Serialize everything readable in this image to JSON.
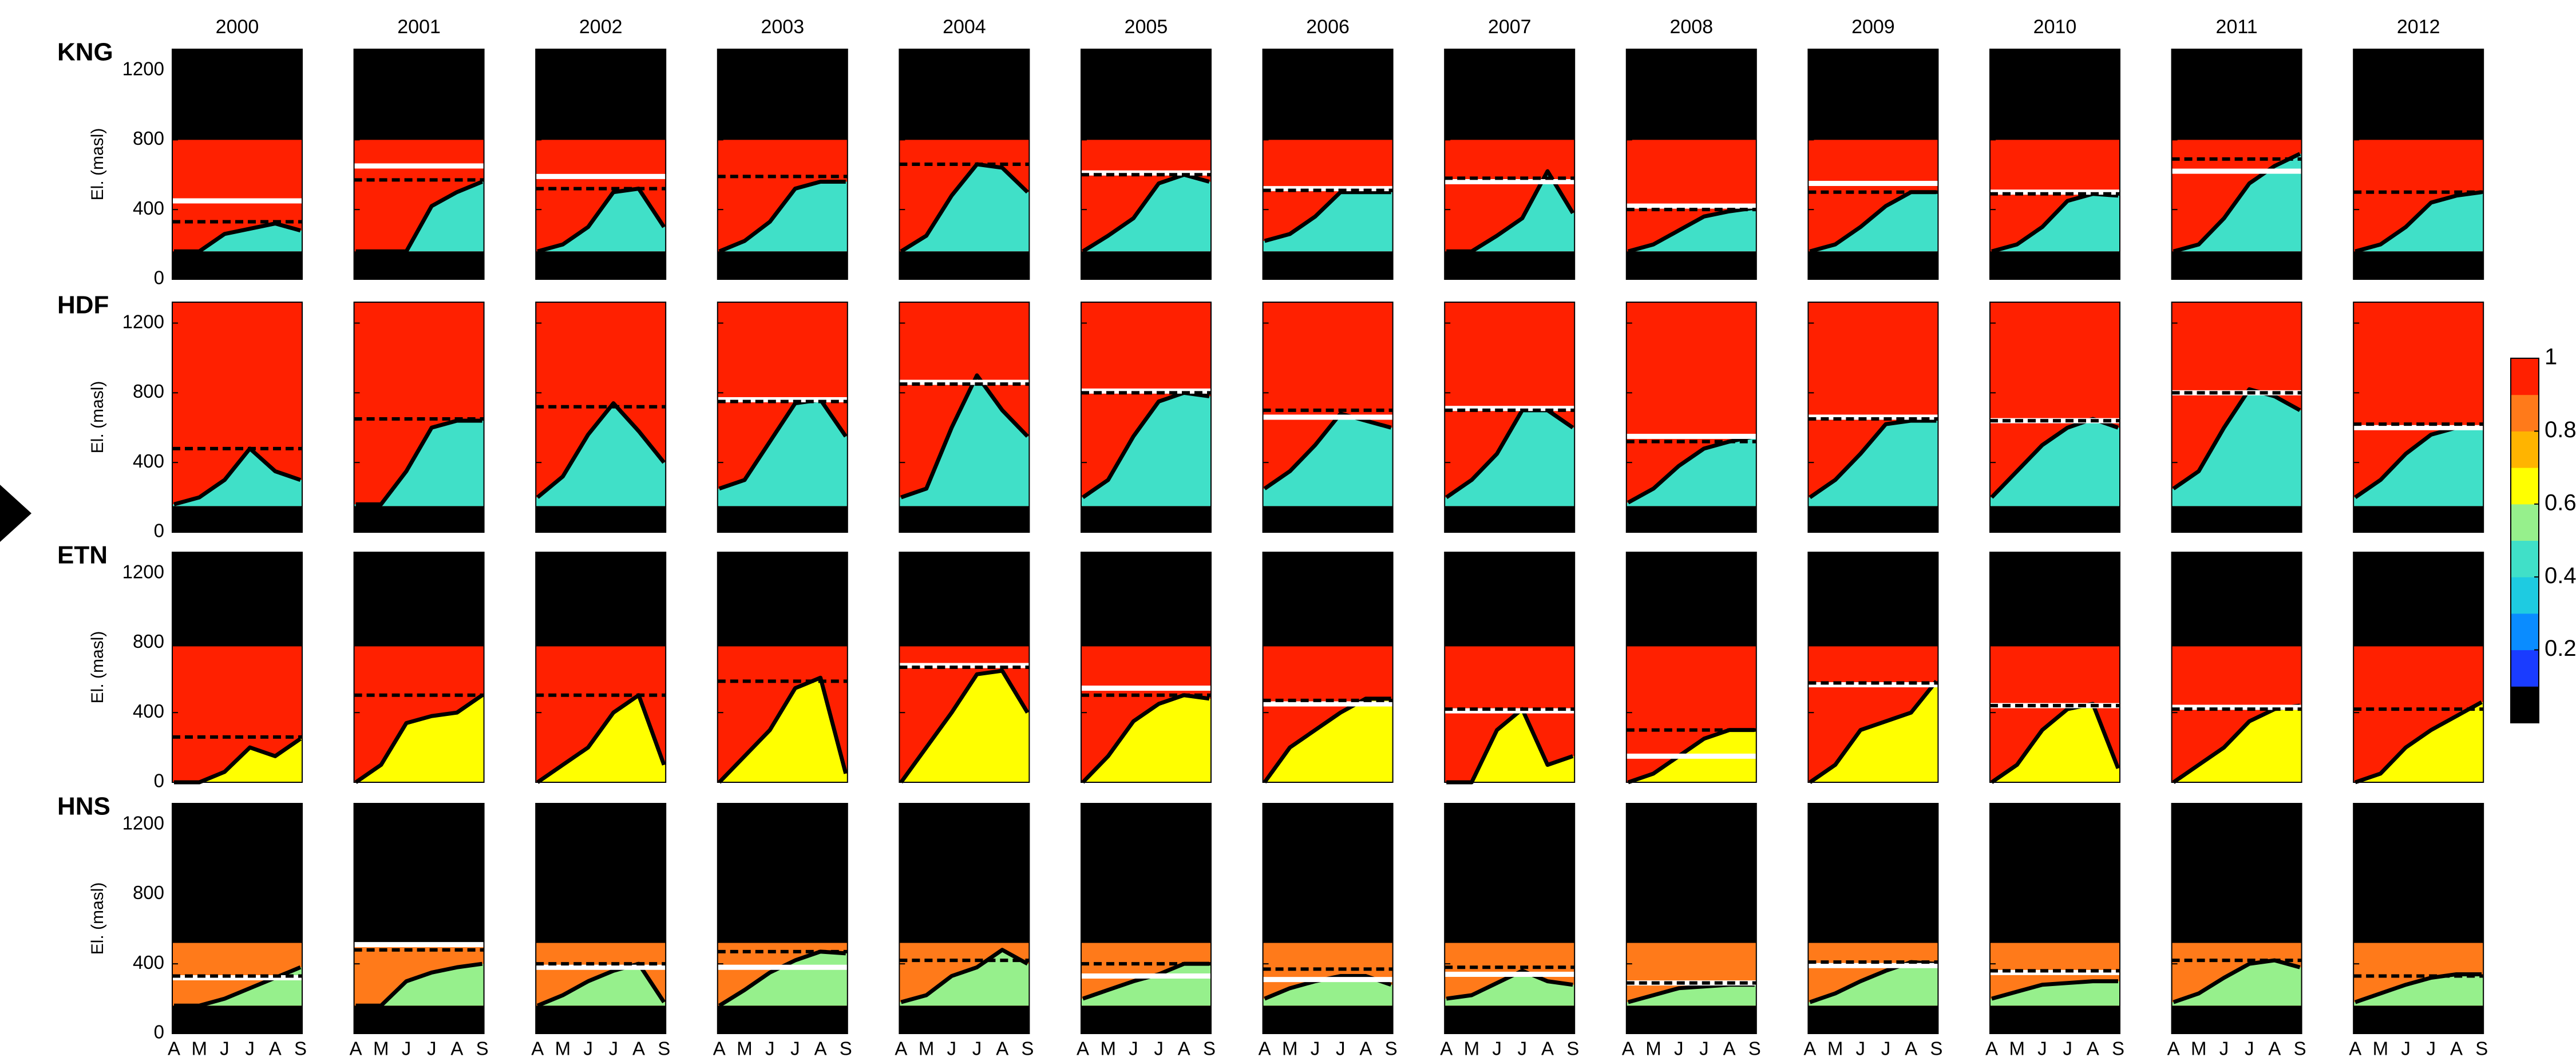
{
  "chart_data": {
    "type": "heatmap",
    "columns": [
      "2000",
      "2001",
      "2002",
      "2003",
      "2004",
      "2005",
      "2006",
      "2007",
      "2008",
      "2009",
      "2010",
      "2011",
      "2012"
    ],
    "categories": [
      "A",
      "M",
      "J",
      "J",
      "A",
      "S"
    ],
    "ylabel": "El. (masl)",
    "ylim": [
      0,
      1320
    ],
    "yticks": [
      0,
      400,
      800,
      1200
    ],
    "colorbar": {
      "lim": [
        0,
        1
      ],
      "ticks": [
        0.2,
        0.4,
        0.6,
        0.8,
        1
      ],
      "colors": [
        "#000000",
        "#1a3cff",
        "#0a8cff",
        "#1ecbe1",
        "#40e0c8",
        "#96f08c",
        "#ffff00",
        "#ffb400",
        "#ff7a1a",
        "#ff2000"
      ]
    },
    "sites": [
      {
        "name": "KNG",
        "range": [
          160,
          800
        ],
        "upper_value": 0.9,
        "lower_value": 0.45,
        "panels": [
          {
            "contour": [
              160,
              160,
              260,
              290,
              320,
              280
            ],
            "dashed": 330,
            "white": 450
          },
          {
            "contour": [
              160,
              160,
              160,
              420,
              500,
              560
            ],
            "dashed": 570,
            "white": 650
          },
          {
            "contour": [
              160,
              200,
              300,
              500,
              520,
              300
            ],
            "dashed": 520,
            "white": 590
          },
          {
            "contour": [
              160,
              220,
              330,
              520,
              560,
              560
            ],
            "dashed": 590,
            "white": null
          },
          {
            "contour": [
              160,
              250,
              480,
              660,
              640,
              500
            ],
            "dashed": 660,
            "white": null
          },
          {
            "contour": [
              160,
              250,
              350,
              550,
              600,
              560
            ],
            "dashed": 600,
            "white": 610
          },
          {
            "contour": [
              220,
              260,
              360,
              500,
              500,
              500
            ],
            "dashed": 510,
            "white": 520
          },
          {
            "contour": [
              160,
              160,
              250,
              350,
              620,
              380
            ],
            "dashed": 580,
            "white": 560
          },
          {
            "contour": [
              160,
              200,
              280,
              360,
              390,
              410
            ],
            "dashed": 400,
            "white": 420
          },
          {
            "contour": [
              160,
              200,
              300,
              420,
              500,
              500
            ],
            "dashed": 500,
            "white": 550
          },
          {
            "contour": [
              160,
              200,
              300,
              450,
              490,
              480
            ],
            "dashed": 490,
            "white": 500
          },
          {
            "contour": [
              160,
              200,
              350,
              550,
              650,
              720
            ],
            "dashed": 690,
            "white": 620
          },
          {
            "contour": [
              160,
              200,
              300,
              440,
              480,
              500
            ],
            "dashed": 500,
            "white": null
          }
        ]
      },
      {
        "name": "HDF",
        "range": [
          150,
          1320
        ],
        "upper_value": 0.95,
        "lower_value": 0.45,
        "panels": [
          {
            "contour": [
              160,
              200,
              300,
              480,
              350,
              300
            ],
            "dashed": 480,
            "white": null
          },
          {
            "contour": [
              160,
              160,
              350,
              600,
              640,
              640
            ],
            "dashed": 650,
            "white": null
          },
          {
            "contour": [
              200,
              320,
              560,
              740,
              580,
              400
            ],
            "dashed": 720,
            "white": null
          },
          {
            "contour": [
              250,
              300,
              520,
              740,
              760,
              550
            ],
            "dashed": 750,
            "white": 760
          },
          {
            "contour": [
              200,
              250,
              600,
              900,
              700,
              550
            ],
            "dashed": 850,
            "white": 860
          },
          {
            "contour": [
              200,
              300,
              550,
              750,
              800,
              780
            ],
            "dashed": 800,
            "white": 810
          },
          {
            "contour": [
              250,
              350,
              500,
              680,
              640,
              600
            ],
            "dashed": 700,
            "white": 660
          },
          {
            "contour": [
              200,
              300,
              450,
              700,
              700,
              600
            ],
            "dashed": 700,
            "white": 710
          },
          {
            "contour": [
              170,
              250,
              380,
              480,
              520,
              550
            ],
            "dashed": 520,
            "white": 550
          },
          {
            "contour": [
              200,
              300,
              450,
              620,
              640,
              640
            ],
            "dashed": 650,
            "white": 660
          },
          {
            "contour": [
              200,
              350,
              500,
              600,
              650,
              600
            ],
            "dashed": 640,
            "white": 640
          },
          {
            "contour": [
              250,
              350,
              600,
              820,
              780,
              700
            ],
            "dashed": 800,
            "white": 800
          },
          {
            "contour": [
              200,
              300,
              450,
              560,
              600,
              600
            ],
            "dashed": 620,
            "white": 600
          }
        ]
      },
      {
        "name": "ETN",
        "range": [
          0,
          780
        ],
        "upper_value": 0.95,
        "lower_value": 0.65,
        "panels": [
          {
            "contour": [
              0,
              0,
              60,
              200,
              150,
              250
            ],
            "dashed": 260,
            "white": null
          },
          {
            "contour": [
              0,
              100,
              340,
              380,
              400,
              500
            ],
            "dashed": 500,
            "white": null
          },
          {
            "contour": [
              0,
              100,
              200,
              400,
              500,
              100
            ],
            "dashed": 500,
            "white": null
          },
          {
            "contour": [
              0,
              150,
              300,
              540,
              600,
              50
            ],
            "dashed": 580,
            "white": null
          },
          {
            "contour": [
              0,
              200,
              400,
              620,
              640,
              400
            ],
            "dashed": 660,
            "white": 670
          },
          {
            "contour": [
              0,
              150,
              350,
              450,
              500,
              480
            ],
            "dashed": 500,
            "white": 540
          },
          {
            "contour": [
              0,
              200,
              300,
              400,
              480,
              480
            ],
            "dashed": 470,
            "white": 450
          },
          {
            "contour": [
              0,
              0,
              300,
              420,
              100,
              150
            ],
            "dashed": 420,
            "white": 410
          },
          {
            "contour": [
              0,
              50,
              150,
              250,
              300,
              300
            ],
            "dashed": 300,
            "white": 150
          },
          {
            "contour": [
              0,
              100,
              300,
              350,
              400,
              580
            ],
            "dashed": 570,
            "white": 560
          },
          {
            "contour": [
              0,
              100,
              300,
              420,
              450,
              80
            ],
            "dashed": 440,
            "white": 440
          },
          {
            "contour": [
              0,
              100,
              200,
              350,
              420,
              440
            ],
            "dashed": 420,
            "white": 430
          },
          {
            "contour": [
              0,
              50,
              200,
              300,
              380,
              460
            ],
            "dashed": 420,
            "white": null
          }
        ]
      },
      {
        "name": "HNS",
        "range": [
          160,
          520
        ],
        "upper_value": 0.85,
        "lower_value": 0.55,
        "panels": [
          {
            "contour": [
              160,
              160,
              200,
              260,
              320,
              380
            ],
            "dashed": 330,
            "white": 320
          },
          {
            "contour": [
              160,
              160,
              300,
              350,
              380,
              400
            ],
            "dashed": 480,
            "white": 510
          },
          {
            "contour": [
              160,
              220,
              300,
              360,
              400,
              180
            ],
            "dashed": 400,
            "white": 380
          },
          {
            "contour": [
              160,
              250,
              350,
              420,
              470,
              460
            ],
            "dashed": 470,
            "white": 380
          },
          {
            "contour": [
              180,
              220,
              330,
              380,
              480,
              400
            ],
            "dashed": 420,
            "white": null
          },
          {
            "contour": [
              200,
              250,
              300,
              340,
              400,
              400
            ],
            "dashed": 400,
            "white": 330
          },
          {
            "contour": [
              200,
              260,
              300,
              330,
              330,
              280
            ],
            "dashed": 370,
            "white": 310
          },
          {
            "contour": [
              200,
              220,
              290,
              360,
              300,
              280
            ],
            "dashed": 380,
            "white": 340
          },
          {
            "contour": [
              180,
              220,
              260,
              270,
              280,
              280
            ],
            "dashed": 290,
            "white": 290
          },
          {
            "contour": [
              180,
              230,
              300,
              360,
              410,
              400
            ],
            "dashed": 410,
            "white": 390
          },
          {
            "contour": [
              200,
              240,
              280,
              290,
              300,
              300
            ],
            "dashed": 360,
            "white": 350
          },
          {
            "contour": [
              180,
              230,
              320,
              400,
              420,
              380
            ],
            "dashed": 420,
            "white": null
          },
          {
            "contour": [
              180,
              230,
              280,
              320,
              340,
              340
            ],
            "dashed": 330,
            "white": null
          }
        ]
      }
    ]
  }
}
